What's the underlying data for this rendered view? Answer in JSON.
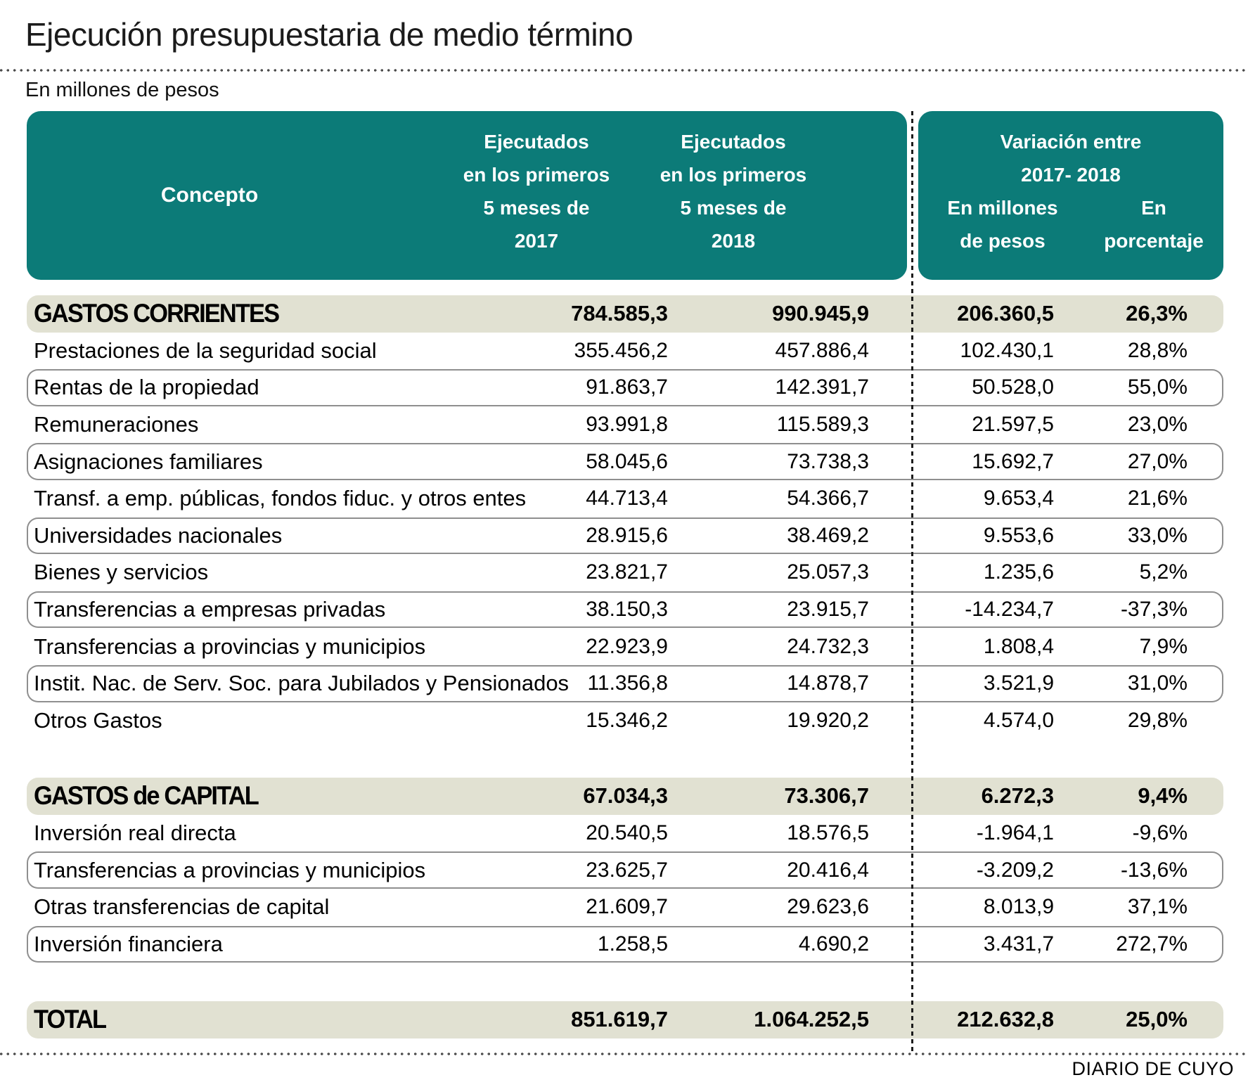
{
  "title": "Ejecución presupuestaria de medio término",
  "unit_label": "En millones de pesos",
  "source": "DIARIO DE CUYO",
  "colors": {
    "teal_header": "#0c7b78",
    "section_row_beige": "#e1e1d2",
    "row_outline_gray": "#8f8f8f"
  },
  "header": {
    "concepto": "Concepto",
    "col2017_lines": [
      "Ejecutados",
      "en los primeros",
      "5 meses de",
      "2017"
    ],
    "col2018_lines": [
      "Ejecutados",
      "en los primeros",
      "5 meses de",
      "2018"
    ],
    "variation_title_lines": [
      "Variación entre",
      "2017- 2018"
    ],
    "variation_sub_millones_lines": [
      "En millones",
      "de pesos"
    ],
    "variation_sub_pct_lines": [
      "En",
      "porcentaje"
    ]
  },
  "chart_data": {
    "type": "table",
    "title": "Ejecución presupuestaria de medio término",
    "unit": "En millones de pesos",
    "columns": [
      "Concepto",
      "Ejecutados en los primeros 5 meses de 2017",
      "Ejecutados en los primeros 5 meses de 2018",
      "Variación entre 2017-2018 en millones de pesos",
      "Variación entre 2017-2018 en porcentaje"
    ],
    "rows": [
      {
        "label": "GASTOS CORRIENTES",
        "v2017": "784.585,3",
        "v2018": "990.945,9",
        "var_abs": "206.360,5",
        "var_pct": "26,3%",
        "kind": "section"
      },
      {
        "label": "Prestaciones de la seguridad social",
        "v2017": "355.456,2",
        "v2018": "457.886,4",
        "var_abs": "102.430,1",
        "var_pct": "28,8%",
        "kind": "row"
      },
      {
        "label": "Rentas de la propiedad",
        "v2017": "91.863,7",
        "v2018": "142.391,7",
        "var_abs": "50.528,0",
        "var_pct": "55,0%",
        "kind": "row",
        "outlined": true
      },
      {
        "label": "Remuneraciones",
        "v2017": "93.991,8",
        "v2018": "115.589,3",
        "var_abs": "21.597,5",
        "var_pct": "23,0%",
        "kind": "row"
      },
      {
        "label": "Asignaciones familiares",
        "v2017": "58.045,6",
        "v2018": "73.738,3",
        "var_abs": "15.692,7",
        "var_pct": "27,0%",
        "kind": "row",
        "outlined": true
      },
      {
        "label": "Transf. a emp. públicas, fondos fiduc. y otros entes",
        "v2017": "44.713,4",
        "v2018": "54.366,7",
        "var_abs": "9.653,4",
        "var_pct": "21,6%",
        "kind": "row"
      },
      {
        "label": "Universidades nacionales",
        "v2017": "28.915,6",
        "v2018": "38.469,2",
        "var_abs": "9.553,6",
        "var_pct": "33,0%",
        "kind": "row",
        "outlined": true
      },
      {
        "label": "Bienes y servicios",
        "v2017": "23.821,7",
        "v2018": "25.057,3",
        "var_abs": "1.235,6",
        "var_pct": "5,2%",
        "kind": "row"
      },
      {
        "label": "Transferencias a empresas privadas",
        "v2017": "38.150,3",
        "v2018": "23.915,7",
        "var_abs": "-14.234,7",
        "var_pct": "-37,3%",
        "kind": "row",
        "outlined": true
      },
      {
        "label": "Transferencias a provincias y municipios",
        "v2017": "22.923,9",
        "v2018": "24.732,3",
        "var_abs": "1.808,4",
        "var_pct": "7,9%",
        "kind": "row"
      },
      {
        "label": "Instit. Nac. de Serv. Soc. para Jubilados y Pensionados",
        "v2017": "11.356,8",
        "v2018": "14.878,7",
        "var_abs": "3.521,9",
        "var_pct": "31,0%",
        "kind": "row",
        "outlined": true
      },
      {
        "label": "Otros Gastos",
        "v2017": "15.346,2",
        "v2018": "19.920,2",
        "var_abs": "4.574,0",
        "var_pct": "29,8%",
        "kind": "row"
      },
      {
        "label": "GASTOS de CAPITAL",
        "v2017": "67.034,3",
        "v2018": "73.306,7",
        "var_abs": "6.272,3",
        "var_pct": "9,4%",
        "kind": "section",
        "gap_before": true
      },
      {
        "label": "Inversión real directa",
        "v2017": "20.540,5",
        "v2018": "18.576,5",
        "var_abs": "-1.964,1",
        "var_pct": "-9,6%",
        "kind": "row"
      },
      {
        "label": "Transferencias a provincias y municipios",
        "v2017": "23.625,7",
        "v2018": "20.416,4",
        "var_abs": "-3.209,2",
        "var_pct": "-13,6%",
        "kind": "row",
        "outlined": true
      },
      {
        "label": "Otras transferencias de capital",
        "v2017": "21.609,7",
        "v2018": "29.623,6",
        "var_abs": "8.013,9",
        "var_pct": "37,1%",
        "kind": "row"
      },
      {
        "label": "Inversión financiera",
        "v2017": "1.258,5",
        "v2018": "4.690,2",
        "var_abs": "3.431,7",
        "var_pct": "272,7%",
        "kind": "row",
        "outlined": true
      },
      {
        "label": "TOTAL",
        "v2017": "851.619,7",
        "v2018": "1.064.252,5",
        "var_abs": "212.632,8",
        "var_pct": "25,0%",
        "kind": "section",
        "gap_before": true
      }
    ]
  }
}
